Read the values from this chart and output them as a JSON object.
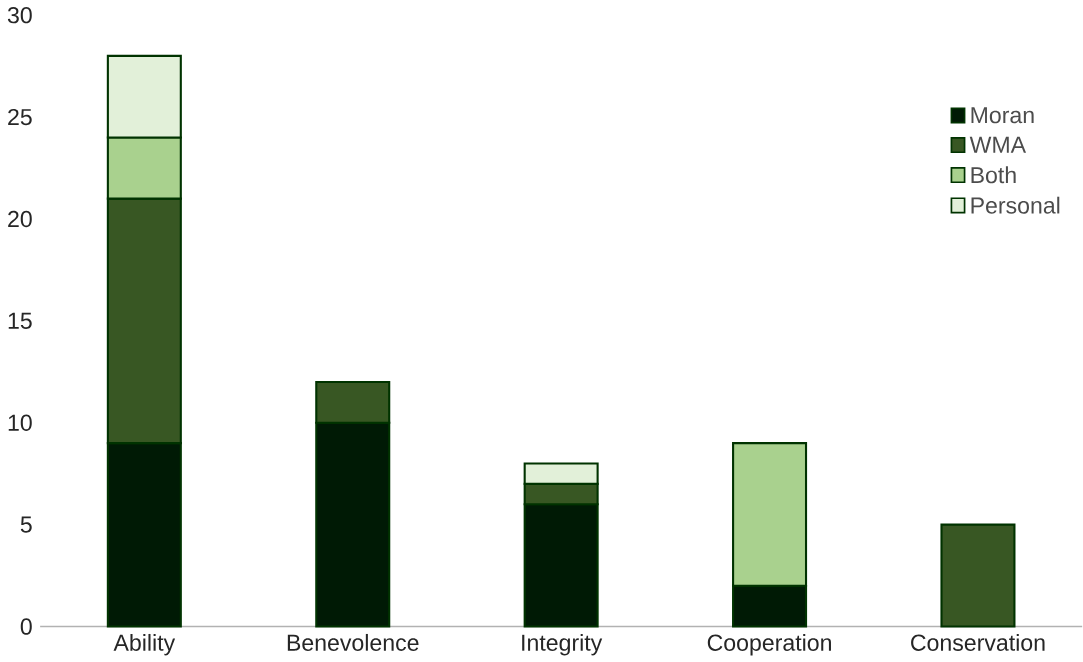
{
  "chart_data": {
    "type": "bar",
    "stacked": true,
    "categories": [
      "Ability",
      "Benevolence",
      "Integrity",
      "Cooperation",
      "Conservation"
    ],
    "series": [
      {
        "name": "Moran",
        "color": "#001a05",
        "values": [
          9,
          10,
          6,
          2,
          null
        ]
      },
      {
        "name": "WMA",
        "color": "#385723",
        "values": [
          12,
          2,
          1,
          null,
          5
        ]
      },
      {
        "name": "Both",
        "color": "#a9d18e",
        "values": [
          3,
          null,
          null,
          7,
          null
        ]
      },
      {
        "name": "Personal",
        "color": "#e2f0d9",
        "values": [
          4,
          null,
          1,
          null,
          null
        ]
      }
    ],
    "ylim": [
      0,
      30
    ],
    "yticks": [
      0,
      5,
      10,
      15,
      20,
      25,
      30
    ],
    "legend": "right"
  }
}
